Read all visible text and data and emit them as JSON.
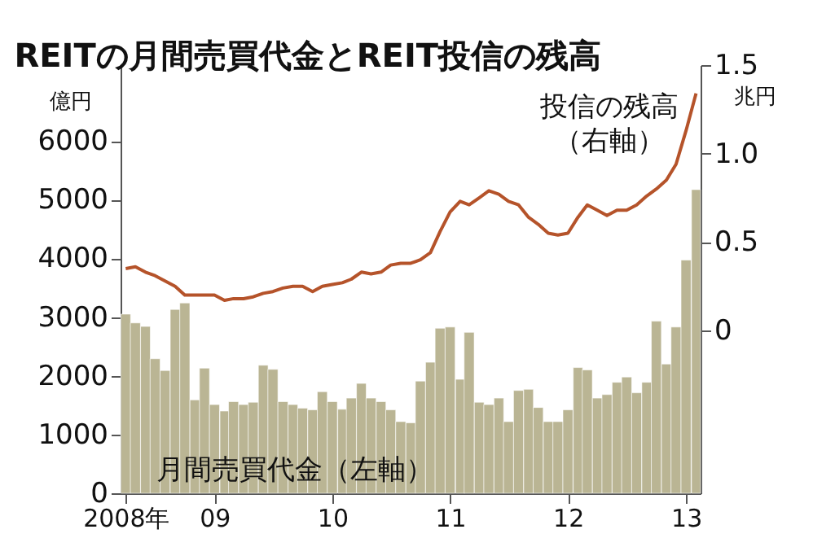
{
  "chart_data": {
    "type": "bar",
    "title": "REITの月間売買代金とREIT投信の残高",
    "ylabel": "億円",
    "y2label": "兆円",
    "x": [
      "2008-04",
      "2008-05",
      "2008-06",
      "2008-07",
      "2008-08",
      "2008-09",
      "2008-10",
      "2008-11",
      "2008-12",
      "2009-01",
      "2009-02",
      "2009-03",
      "2009-04",
      "2009-05",
      "2009-06",
      "2009-07",
      "2009-08",
      "2009-09",
      "2009-10",
      "2009-11",
      "2009-12",
      "2010-01",
      "2010-02",
      "2010-03",
      "2010-04",
      "2010-05",
      "2010-06",
      "2010-07",
      "2010-08",
      "2010-09",
      "2010-10",
      "2010-11",
      "2010-12",
      "2011-01",
      "2011-02",
      "2011-03",
      "2011-04",
      "2011-05",
      "2011-06",
      "2011-07",
      "2011-08",
      "2011-09",
      "2011-10",
      "2011-11",
      "2011-12",
      "2012-01",
      "2012-02",
      "2012-03",
      "2012-04",
      "2012-05",
      "2012-06",
      "2012-07",
      "2012-08",
      "2012-09",
      "2012-10",
      "2012-11",
      "2012-12",
      "2013-01",
      "2013-02"
    ],
    "series": [
      {
        "name": "月間売買代金（左軸）",
        "color": "#bab594",
        "values": [
          3050,
          2900,
          2840,
          2290,
          2090,
          3130,
          3240,
          1590,
          2130,
          1510,
          1400,
          1560,
          1510,
          1550,
          2180,
          2110,
          1560,
          1510,
          1450,
          1420,
          1730,
          1560,
          1430,
          1620,
          1870,
          1620,
          1560,
          1420,
          1220,
          1200,
          1910,
          2230,
          2810,
          2830,
          1940,
          2740,
          1550,
          1510,
          1620,
          1220,
          1750,
          1770,
          1460,
          1220,
          1220,
          1420,
          2140,
          2100,
          1620,
          1680,
          1890,
          1980,
          1710,
          1890,
          2930,
          2200,
          2830,
          3970,
          5170
        ]
      },
      {
        "name": "投信の残高（右軸）",
        "type": "line",
        "axis": "y2",
        "color": "#b5532a",
        "values": [
          0.35,
          0.36,
          0.33,
          0.31,
          0.28,
          0.25,
          0.2,
          0.2,
          0.2,
          0.2,
          0.17,
          0.18,
          0.18,
          0.19,
          0.21,
          0.22,
          0.24,
          0.25,
          0.25,
          0.22,
          0.25,
          0.26,
          0.27,
          0.29,
          0.33,
          0.32,
          0.33,
          0.37,
          0.38,
          0.38,
          0.4,
          0.44,
          0.56,
          0.67,
          0.73,
          0.71,
          0.75,
          0.79,
          0.77,
          0.73,
          0.71,
          0.64,
          0.6,
          0.55,
          0.54,
          0.55,
          0.64,
          0.71,
          0.68,
          0.65,
          0.68,
          0.68,
          0.71,
          0.76,
          0.8,
          0.85,
          0.94,
          1.13,
          1.34
        ]
      }
    ],
    "xlim": [
      "2008-03-16",
      "2013-02-15"
    ],
    "xticks": [
      {
        "value": "2008-04",
        "label": "2008年"
      },
      {
        "value": "2009-01",
        "label": "09"
      },
      {
        "value": "2010-01",
        "label": "10"
      },
      {
        "value": "2011-01",
        "label": "11"
      },
      {
        "value": "2012-01",
        "label": "12"
      },
      {
        "value": "2013-01",
        "label": "13"
      }
    ],
    "ylim": [
      0,
      7290
    ],
    "yticks": [
      0,
      1000,
      2000,
      3000,
      4000,
      5000,
      6000
    ],
    "y2lim": [
      -0.92,
      1.5
    ],
    "y2ticks": [
      {
        "value": 0,
        "label": "0"
      },
      {
        "value": 0.5,
        "label": "0.5"
      },
      {
        "value": 1,
        "label": "1.0"
      },
      {
        "value": 1.5,
        "label": "1.5"
      }
    ]
  }
}
